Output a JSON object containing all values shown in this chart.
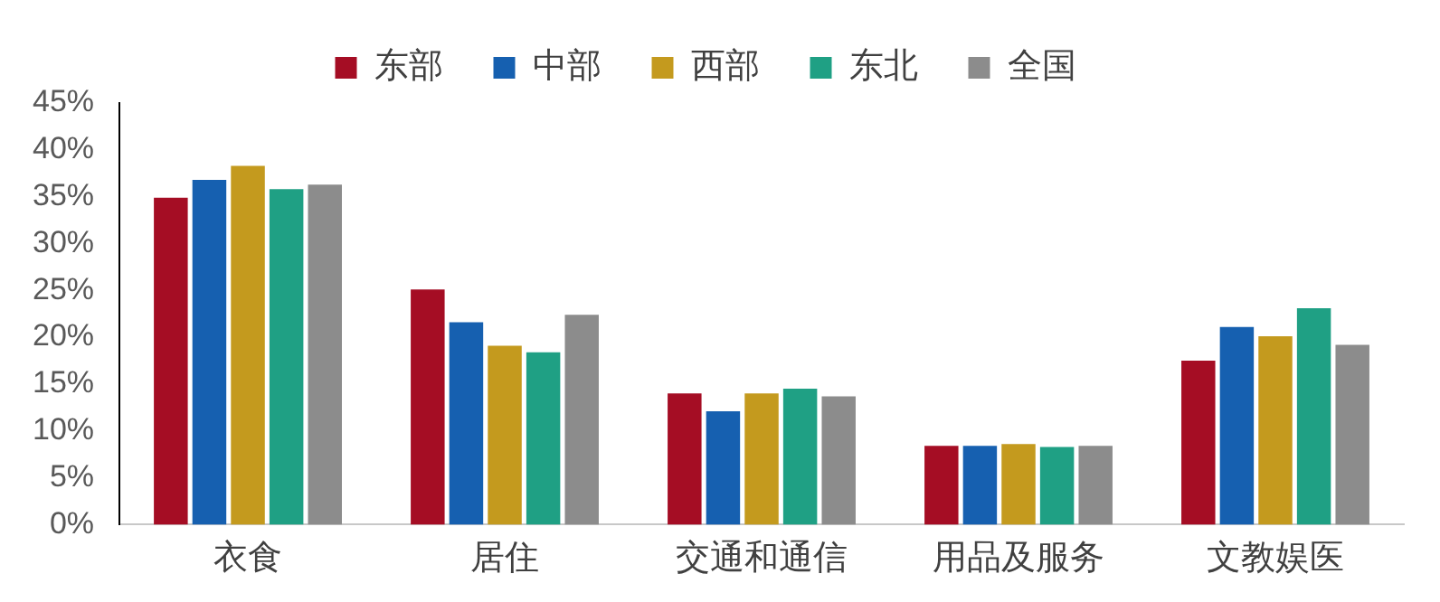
{
  "chart_data": {
    "type": "bar",
    "categories": [
      "衣食",
      "居住",
      "交通和通信",
      "用品及服务",
      "文教娱医"
    ],
    "series": [
      {
        "name": "东部",
        "color": "#a50d24",
        "values": [
          34.9,
          25.1,
          14.0,
          8.4,
          17.5
        ]
      },
      {
        "name": "中部",
        "color": "#1660b0",
        "values": [
          36.8,
          21.6,
          12.1,
          8.4,
          21.1
        ]
      },
      {
        "name": "西部",
        "color": "#c49a1e",
        "values": [
          38.3,
          19.1,
          14.0,
          8.6,
          20.1
        ]
      },
      {
        "name": "东北",
        "color": "#1fa084",
        "values": [
          35.8,
          18.4,
          14.5,
          8.3,
          23.1
        ]
      },
      {
        "name": "全国",
        "color": "#8c8c8c",
        "values": [
          36.3,
          22.4,
          13.7,
          8.4,
          19.2
        ]
      }
    ],
    "ylim": [
      0,
      45
    ],
    "yticks": [
      {
        "value": 0,
        "label": "0%"
      },
      {
        "value": 5,
        "label": "5%"
      },
      {
        "value": 10,
        "label": "10%"
      },
      {
        "value": 15,
        "label": "15%"
      },
      {
        "value": 20,
        "label": "20%"
      },
      {
        "value": 25,
        "label": "25%"
      },
      {
        "value": 30,
        "label": "30%"
      },
      {
        "value": 35,
        "label": "35%"
      },
      {
        "value": 40,
        "label": "40%"
      },
      {
        "value": 45,
        "label": "45%"
      }
    ],
    "grid": false,
    "legend": "top"
  }
}
